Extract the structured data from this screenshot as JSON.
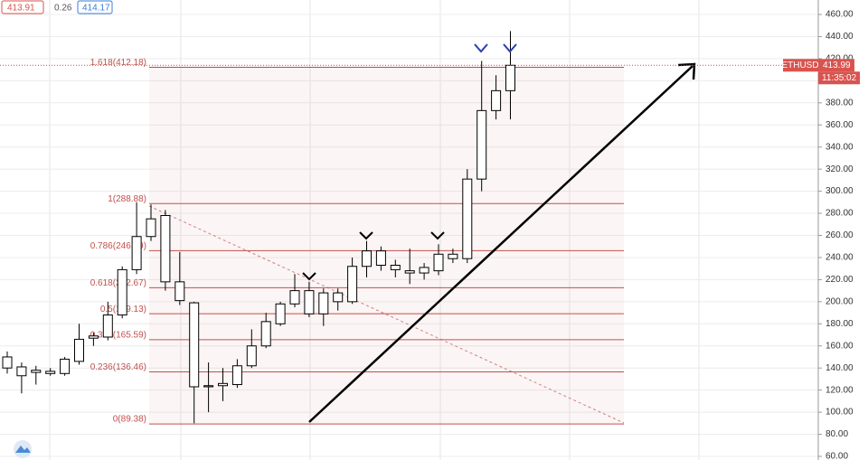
{
  "chart_data": {
    "type": "candlestick",
    "symbol": "ETHUSD",
    "header": {
      "open_box": "413.91",
      "change": "0.26",
      "ask_box": "414.17"
    },
    "last_price": {
      "value": 413.99,
      "label": "413.99"
    },
    "countdown": "11:35:02",
    "open": [
      140,
      141,
      136,
      137,
      135,
      146,
      167,
      168,
      188,
      229,
      259,
      278,
      218,
      199,
      123,
      124,
      125,
      142,
      160,
      180,
      198,
      210,
      189,
      200,
      200,
      232,
      246,
      233,
      228,
      226,
      228,
      239,
      239,
      311,
      373,
      391
    ],
    "high": [
      155,
      145,
      142,
      140,
      150,
      180,
      172,
      200,
      232,
      290,
      288,
      283,
      245,
      200,
      145,
      140,
      148,
      175,
      190,
      200,
      225,
      218,
      212,
      212,
      240,
      255,
      250,
      238,
      248,
      235,
      252,
      248,
      320,
      418,
      405,
      445
    ],
    "low": [
      135,
      117,
      125,
      133,
      133,
      143,
      160,
      165,
      185,
      225,
      255,
      210,
      197,
      90,
      100,
      110,
      122,
      140,
      158,
      178,
      195,
      186,
      178,
      192,
      198,
      222,
      228,
      222,
      216,
      220,
      224,
      235,
      235,
      300,
      365,
      365
    ],
    "close": [
      150,
      133,
      138,
      135,
      148,
      166,
      169,
      188,
      229,
      259,
      275,
      218,
      201,
      123,
      124,
      126,
      142,
      160,
      182,
      198,
      210,
      189,
      208,
      208,
      232,
      246,
      233,
      229,
      226,
      231,
      243,
      243,
      311,
      373,
      391,
      414
    ],
    "fib_levels": [
      {
        "value": 412.18,
        "label": "1.618(412.18)"
      },
      {
        "value": 288.88,
        "label": "1(288.88)"
      },
      {
        "value": 246.19,
        "label": "0.786(246.19)"
      },
      {
        "value": 212.67,
        "label": "0.618(212.67)"
      },
      {
        "value": 189.13,
        "label": "0.5(189.13)"
      },
      {
        "value": 165.59,
        "label": "0.382(165.59)"
      },
      {
        "value": 136.46,
        "label": "0.236(136.46)"
      },
      {
        "value": 89.38,
        "label": "0(89.38)"
      }
    ],
    "ylim": [
      60,
      460
    ],
    "yticks": [
      {
        "value": 460,
        "label": "460.00"
      },
      {
        "value": 440,
        "label": "440.00"
      },
      {
        "value": 420,
        "label": "420.00"
      },
      {
        "value": 400,
        "label": "400.00"
      },
      {
        "value": 380,
        "label": "380.00"
      },
      {
        "value": 360,
        "label": "360.00"
      },
      {
        "value": 340,
        "label": "340.00"
      },
      {
        "value": 320,
        "label": "320.00"
      },
      {
        "value": 300,
        "label": "300.00"
      },
      {
        "value": 280,
        "label": "280.00"
      },
      {
        "value": 260,
        "label": "260.00"
      },
      {
        "value": 240,
        "label": "240.00"
      },
      {
        "value": 220,
        "label": "220.00"
      },
      {
        "value": 200,
        "label": "200.00"
      },
      {
        "value": 180,
        "label": "180.00"
      },
      {
        "value": 160,
        "label": "160.00"
      },
      {
        "value": 140,
        "label": "140.00"
      },
      {
        "value": 120,
        "label": "120.00"
      },
      {
        "value": 100,
        "label": "100.00"
      },
      {
        "value": 80,
        "label": "80.00"
      },
      {
        "value": 60,
        "label": "60.00"
      }
    ],
    "grid": true,
    "fib_color": "#c0504d"
  }
}
